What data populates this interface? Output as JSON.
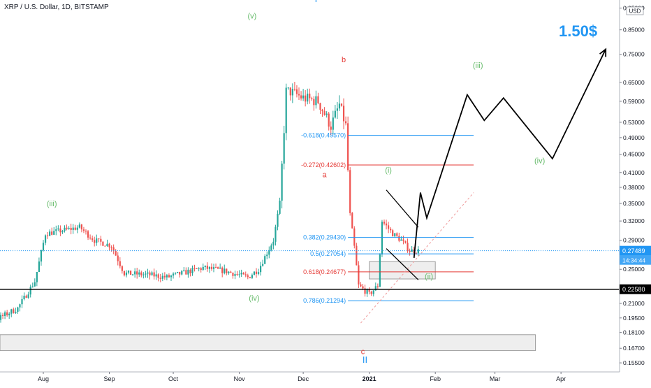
{
  "header": {
    "symbol": "XRP / U.S. Dollar, 1D, BITSTAMP",
    "currency": "USD"
  },
  "colors": {
    "up": "#26a69a",
    "down": "#ef5350",
    "wave_green": "#66bb6a",
    "wave_red": "#e53935",
    "wave_blue": "#2196f3",
    "fib_blue": "#2196f3",
    "fib_red": "#e53935",
    "target_blue": "#2196f3",
    "current_price_bg": "#2196f3",
    "support_line": "#000000"
  },
  "chart_data": {
    "type": "candlestick",
    "y_scale": "log",
    "ylim": [
      0.148,
      0.99
    ],
    "x_ticks": [
      "Aug",
      "Sep",
      "Oct",
      "Nov",
      "Dec",
      "2021",
      "Feb",
      "Mar",
      "Apr"
    ],
    "y_ticks": [
      "0.95000",
      "0.85000",
      "0.75000",
      "0.65000",
      "0.59000",
      "0.53000",
      "0.49000",
      "0.45000",
      "0.41000",
      "0.38000",
      "0.35000",
      "0.32000",
      "0.29000",
      "0.25000",
      "0.21000",
      "0.19500",
      "0.18100",
      "0.16700",
      "0.15500"
    ],
    "y_tick_values": [
      0.95,
      0.85,
      0.75,
      0.65,
      0.59,
      0.53,
      0.49,
      0.45,
      0.41,
      0.38,
      0.35,
      0.32,
      0.29,
      0.25,
      0.21,
      0.195,
      0.181,
      0.167,
      0.155
    ],
    "current_price": {
      "value": "0.27489",
      "countdown": "14:34:44"
    },
    "support_price": {
      "value": "0.22580"
    },
    "fib_levels": [
      {
        "label": "-0.618(0.49570)",
        "value": 0.4957,
        "color": "blue"
      },
      {
        "label": "-0.272(0.42602)",
        "value": 0.42602,
        "color": "red"
      },
      {
        "label": "0.382(0.29430)",
        "value": 0.2943,
        "color": "blue"
      },
      {
        "label": "0.5(0.27054)",
        "value": 0.27054,
        "color": "blue"
      },
      {
        "label": "0.618(0.24677)",
        "value": 0.24677,
        "color": "red"
      },
      {
        "label": "0.786(0.21294)",
        "value": 0.21294,
        "color": "blue"
      }
    ],
    "wave_labels": [
      {
        "text": "(v)",
        "color": "green",
        "date": "2020-11-07",
        "price": 0.9
      },
      {
        "text": "(iii)",
        "color": "green",
        "date": "2020-08-05",
        "price": 0.345
      },
      {
        "text": "(iv)",
        "color": "green",
        "date": "2020-11-08",
        "price": 0.213
      },
      {
        "text": "b",
        "color": "red",
        "date": "2020-12-20",
        "price": 0.72
      },
      {
        "text": "a",
        "color": "red",
        "date": "2020-12-11",
        "price": 0.4
      },
      {
        "text": "c",
        "color": "red",
        "date": "2020-12-29",
        "price": 0.162
      },
      {
        "text": "(i)",
        "color": "green",
        "date": "2021-01-10",
        "price": 0.41
      },
      {
        "text": "(ii)",
        "color": "green",
        "date": "2021-01-29",
        "price": 0.238
      },
      {
        "text": "(iii)",
        "color": "green",
        "date": "2021-02-21",
        "price": 0.7
      },
      {
        "text": "(iv)",
        "color": "green",
        "date": "2021-03-22",
        "price": 0.43
      },
      {
        "text": "I",
        "color": "blue",
        "date": "2020-12-07",
        "price": 0.98
      },
      {
        "text": "II",
        "color": "blue",
        "date": "2020-12-30",
        "price": 0.155
      }
    ],
    "target_label": "1.50$",
    "projection_path": [
      {
        "date": "2021-01-22",
        "price": 0.265
      },
      {
        "date": "2021-01-25",
        "price": 0.37
      },
      {
        "date": "2021-01-28",
        "price": 0.325
      },
      {
        "date": "2021-02-16",
        "price": 0.61
      },
      {
        "date": "2021-02-24",
        "price": 0.535
      },
      {
        "date": "2021-03-05",
        "price": 0.6
      },
      {
        "date": "2021-03-28",
        "price": 0.44
      },
      {
        "date": "2021-04-22",
        "price": 0.77
      }
    ],
    "target_arrow": {
      "date": "2021-04-22",
      "price": 0.77
    },
    "wedge_upper": [
      {
        "date": "2021-01-09",
        "price": 0.375
      },
      {
        "date": "2021-01-24",
        "price": 0.31
      }
    ],
    "wedge_lower": [
      {
        "date": "2021-01-09",
        "price": 0.278
      },
      {
        "date": "2021-01-24",
        "price": 0.237
      }
    ],
    "dashed_trendline": [
      {
        "date": "2020-12-28",
        "price": 0.19
      },
      {
        "date": "2021-02-19",
        "price": 0.37
      }
    ],
    "zones": [
      {
        "date_from": "2021-01-01",
        "date_to": "2021-02-01",
        "price_from": 0.238,
        "price_to": 0.26
      },
      {
        "date_from": "2020-06-20",
        "date_to": "2021-03-20",
        "price_from": 0.165,
        "price_to": 0.179
      }
    ],
    "support_line_value": 0.2258
  }
}
